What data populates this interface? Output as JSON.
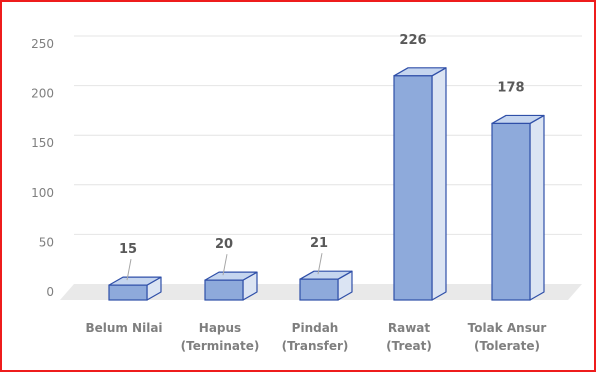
{
  "colors": {
    "frame": "#ee1c1c",
    "bar_front": "#8eaadb",
    "bar_side": "#dbe4f3",
    "bar_top": "#c5d5ef",
    "bar_edge": "#2f4fa8",
    "floor": "#e9e9e9",
    "grid": "#e4e4e4",
    "text": "#7f7f7f"
  },
  "chart_data": {
    "type": "bar",
    "style": "3d-column",
    "categories": [
      [
        "Belum Nilai"
      ],
      [
        "Hapus",
        "(Terminate)"
      ],
      [
        "Pindah",
        "(Transfer)"
      ],
      [
        "Rawat",
        "(Treat)"
      ],
      [
        "Tolak Ansur",
        "(Tolerate)"
      ]
    ],
    "values": [
      15,
      20,
      21,
      226,
      178
    ],
    "data_labels": [
      "15",
      "20",
      "21",
      "226",
      "178"
    ],
    "yticks": [
      "0",
      "50",
      "100",
      "150",
      "200",
      "250"
    ],
    "ylim": [
      0,
      250
    ],
    "grid": true,
    "legend": "none"
  }
}
